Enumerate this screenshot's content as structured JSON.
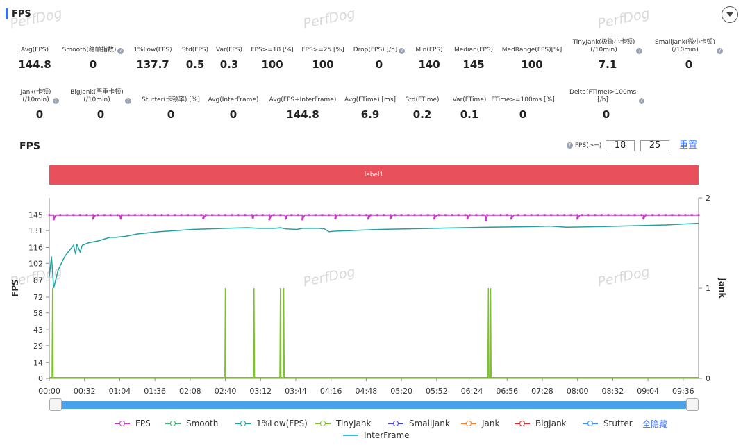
{
  "header": {
    "title": "FPS"
  },
  "watermark": "PerfDog",
  "metrics_row1": [
    {
      "label": "Avg(FPS)",
      "value": "144.8",
      "help": false
    },
    {
      "label": "Smooth(稳帧指数)",
      "value": "0",
      "help": true
    },
    {
      "label": "1%Low(FPS)",
      "value": "137.7",
      "help": false
    },
    {
      "label": "Std(FPS)",
      "value": "0.5",
      "help": false
    },
    {
      "label": "Var(FPS)",
      "value": "0.3",
      "help": false
    },
    {
      "label": "FPS>=18 [%]",
      "value": "100",
      "help": false
    },
    {
      "label": "FPS>=25 [%]",
      "value": "100",
      "help": false
    },
    {
      "label": "Drop(FPS) [/h]",
      "value": "0",
      "help": true
    },
    {
      "label": "Min(FPS)",
      "value": "140",
      "help": false
    },
    {
      "label": "Median(FPS)",
      "value": "145",
      "help": false
    },
    {
      "label": "MedRange(FPS)[%]",
      "value": "100",
      "help": false
    },
    {
      "label": "TinyJank(极微小卡顿)\n(/10min)",
      "value": "7.1",
      "help": true
    },
    {
      "label": "SmallJank(微小卡顿)\n(/10min)",
      "value": "0",
      "help": true
    }
  ],
  "metrics_row2": [
    {
      "label": "Jank(卡顿)\n(/10min)",
      "value": "0",
      "help": true
    },
    {
      "label": "BigJank(严重卡顿)\n(/10min)",
      "value": "0",
      "help": true
    },
    {
      "label": "Stutter(卡顿率) [%]",
      "value": "0",
      "help": false
    },
    {
      "label": "Avg(InterFrame)",
      "value": "0",
      "help": false
    },
    {
      "label": "Avg(FPS+InterFrame)",
      "value": "144.8",
      "help": false
    },
    {
      "label": "Avg(FTime) [ms]",
      "value": "6.9",
      "help": false
    },
    {
      "label": "Std(FTime)",
      "value": "0.2",
      "help": false
    },
    {
      "label": "Var(FTime)",
      "value": "0.1",
      "help": false
    },
    {
      "label": "FTime>=100ms [%]",
      "value": "0",
      "help": false
    },
    {
      "label": "Delta(FTime)>100ms [/h]",
      "value": "0",
      "help": true
    }
  ],
  "chart_section": {
    "title": "FPS",
    "threshold_label": "FPS(>=)",
    "threshold_1": "18",
    "threshold_2": "25",
    "reset_label": "重置",
    "label_bar": "label1",
    "hide_all_label": "全隐藏"
  },
  "chart_data": {
    "type": "line",
    "ylabel": "FPS",
    "y2label": "Jank",
    "y_ticks": [
      0,
      14,
      29,
      43,
      58,
      72,
      87,
      102,
      116,
      131,
      145
    ],
    "y2_ticks": [
      0,
      1,
      2
    ],
    "y_range": [
      0,
      160
    ],
    "y2_range": [
      0,
      2
    ],
    "x_range_seconds": [
      0,
      590
    ],
    "x_ticks": [
      "00:00",
      "00:32",
      "01:04",
      "01:36",
      "02:08",
      "02:40",
      "03:12",
      "03:44",
      "04:16",
      "04:48",
      "05:20",
      "05:52",
      "06:24",
      "06:56",
      "07:28",
      "08:00",
      "08:32",
      "09:04",
      "09:36"
    ],
    "series": [
      {
        "name": "FPS",
        "color": "#c040c0",
        "axis": "left",
        "points": [
          [
            0,
            144.5
          ],
          [
            20,
            144.6
          ],
          [
            60,
            144.8
          ],
          [
            120,
            144.8
          ],
          [
            180,
            144.9
          ],
          [
            200,
            144.8
          ],
          [
            300,
            144.8
          ],
          [
            400,
            144.8
          ],
          [
            590,
            144.8
          ]
        ],
        "dips": [
          [
            4,
            141
          ],
          [
            40,
            142
          ],
          [
            65,
            142
          ],
          [
            140,
            142
          ],
          [
            185,
            142.5
          ],
          [
            200,
            141
          ],
          [
            215,
            142
          ],
          [
            230,
            141
          ],
          [
            260,
            142
          ],
          [
            290,
            142
          ],
          [
            310,
            142
          ],
          [
            350,
            142
          ],
          [
            380,
            142
          ],
          [
            397,
            140
          ],
          [
            420,
            142
          ],
          [
            480,
            142
          ],
          [
            540,
            142
          ]
        ]
      },
      {
        "name": "Smooth",
        "color": "#3cb371",
        "axis": "left",
        "points": [
          [
            0,
            0
          ],
          [
            590,
            0
          ]
        ]
      },
      {
        "name": "1%Low(FPS)",
        "color": "#20a0a0",
        "axis": "left",
        "points": [
          [
            0,
            90
          ],
          [
            2,
            108
          ],
          [
            4,
            80
          ],
          [
            8,
            96
          ],
          [
            14,
            108
          ],
          [
            18,
            113
          ],
          [
            22,
            118
          ],
          [
            24,
            110
          ],
          [
            25,
            119
          ],
          [
            28,
            112
          ],
          [
            30,
            118
          ],
          [
            35,
            120
          ],
          [
            40,
            121
          ],
          [
            45,
            122
          ],
          [
            55,
            125
          ],
          [
            60,
            125
          ],
          [
            70,
            126
          ],
          [
            80,
            128
          ],
          [
            100,
            130
          ],
          [
            130,
            132
          ],
          [
            160,
            133
          ],
          [
            180,
            133.5
          ],
          [
            190,
            133
          ],
          [
            205,
            133
          ],
          [
            210,
            133.5
          ],
          [
            215,
            132.5
          ],
          [
            225,
            132
          ],
          [
            230,
            133
          ],
          [
            245,
            133
          ],
          [
            250,
            132.5
          ],
          [
            254,
            130
          ],
          [
            260,
            130.5
          ],
          [
            300,
            132
          ],
          [
            350,
            133
          ],
          [
            400,
            134
          ],
          [
            440,
            134.5
          ],
          [
            455,
            135
          ],
          [
            470,
            134
          ],
          [
            500,
            134.5
          ],
          [
            560,
            136
          ],
          [
            590,
            137.5
          ]
        ]
      },
      {
        "name": "TinyJank",
        "color": "#7ec02e",
        "axis": "right",
        "spikes": [
          3,
          160,
          186,
          210,
          213,
          399,
          401
        ]
      },
      {
        "name": "SmallJank",
        "color": "#4848e0",
        "axis": "right",
        "points": [
          [
            0,
            0
          ],
          [
            590,
            0
          ]
        ]
      },
      {
        "name": "Jank",
        "color": "#f08030",
        "axis": "right",
        "points": [
          [
            0,
            0
          ],
          [
            590,
            0
          ]
        ]
      },
      {
        "name": "BigJank",
        "color": "#e03030",
        "axis": "right",
        "points": [
          [
            0,
            0
          ],
          [
            590,
            0
          ]
        ]
      },
      {
        "name": "Stutter",
        "color": "#3b8ef5",
        "axis": "right",
        "points": [
          [
            0,
            0
          ],
          [
            590,
            0
          ]
        ]
      },
      {
        "name": "InterFrame",
        "color": "#30c0e0",
        "axis": "left",
        "points": [
          [
            0,
            0
          ],
          [
            590,
            0
          ]
        ]
      }
    ]
  }
}
